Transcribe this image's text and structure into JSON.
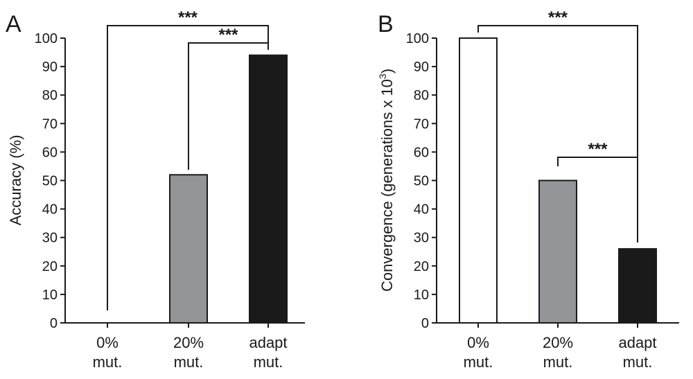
{
  "chart_data": [
    {
      "type": "bar",
      "panel": "A",
      "ylabel": "Accuracy (%)",
      "ylim": [
        0,
        100
      ],
      "yticks": [
        0,
        10,
        20,
        30,
        40,
        50,
        60,
        70,
        80,
        90,
        100
      ],
      "categories": [
        [
          "0%",
          "mut."
        ],
        [
          "20%",
          "mut."
        ],
        [
          "adapt",
          "mut."
        ]
      ],
      "values": [
        0,
        52,
        94
      ],
      "bar_colors": [
        "#ffffff",
        "#939598",
        "#1a1a1a"
      ],
      "significance": [
        {
          "from": 0,
          "to": 2,
          "label": "***"
        },
        {
          "from": 1,
          "to": 2,
          "label": "***"
        }
      ]
    },
    {
      "type": "bar",
      "panel": "B",
      "ylabel_parts": {
        "main": "Convergence (generations x 10",
        "sup": "3",
        "end": ")"
      },
      "ylim": [
        0,
        100
      ],
      "yticks": [
        0,
        10,
        20,
        30,
        40,
        50,
        60,
        70,
        80,
        90,
        100
      ],
      "categories": [
        [
          "0%",
          "mut."
        ],
        [
          "20%",
          "mut."
        ],
        [
          "adapt",
          "mut."
        ]
      ],
      "values": [
        100,
        50,
        26
      ],
      "bar_colors": [
        "#ffffff",
        "#939598",
        "#1a1a1a"
      ],
      "significance": [
        {
          "from": 0,
          "to": 2,
          "label": "***"
        },
        {
          "from": 1,
          "to": 2,
          "label": "***"
        }
      ]
    }
  ]
}
